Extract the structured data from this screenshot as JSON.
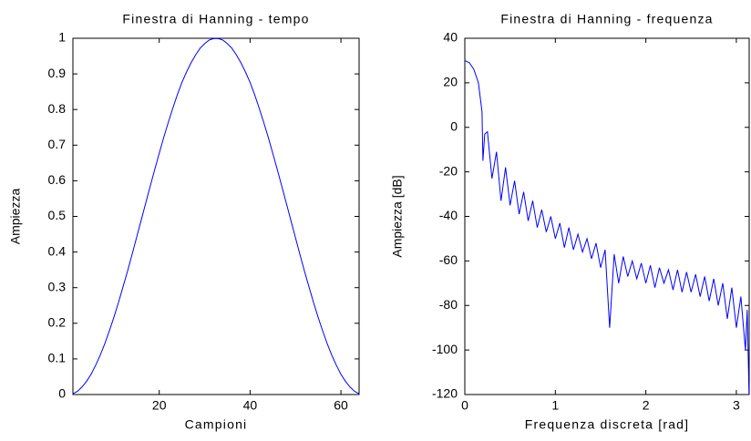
{
  "chart_data": [
    {
      "type": "line",
      "title": "Finestra di Hanning - tempo",
      "xlabel": "Campioni",
      "ylabel": "Ampiezza",
      "color": "#0000ff",
      "x": [
        1,
        2,
        3,
        4,
        5,
        6,
        7,
        8,
        9,
        10,
        11,
        12,
        13,
        14,
        15,
        16,
        17,
        18,
        19,
        20,
        21,
        22,
        23,
        24,
        25,
        26,
        27,
        28,
        29,
        30,
        31,
        32,
        33,
        34,
        35,
        36,
        37,
        38,
        39,
        40,
        41,
        42,
        43,
        44,
        45,
        46,
        47,
        48,
        49,
        50,
        51,
        52,
        53,
        54,
        55,
        56,
        57,
        58,
        59,
        60,
        61,
        62,
        63,
        64
      ],
      "values": [
        0.002,
        0.009,
        0.021,
        0.037,
        0.057,
        0.082,
        0.11,
        0.142,
        0.178,
        0.216,
        0.257,
        0.301,
        0.345,
        0.392,
        0.44,
        0.488,
        0.536,
        0.584,
        0.631,
        0.677,
        0.722,
        0.764,
        0.804,
        0.842,
        0.876,
        0.905,
        0.931,
        0.953,
        0.972,
        0.985,
        0.995,
        0.999,
        0.999,
        0.995,
        0.985,
        0.972,
        0.953,
        0.931,
        0.905,
        0.876,
        0.842,
        0.804,
        0.764,
        0.722,
        0.677,
        0.631,
        0.584,
        0.536,
        0.488,
        0.44,
        0.392,
        0.345,
        0.301,
        0.257,
        0.216,
        0.178,
        0.142,
        0.11,
        0.082,
        0.057,
        0.037,
        0.021,
        0.009,
        0.002
      ],
      "xlim": [
        1,
        64
      ],
      "xticks": [
        20,
        40,
        60
      ],
      "ylim": [
        0,
        1
      ],
      "yticks": [
        0,
        0.1,
        0.2,
        0.3,
        0.4,
        0.5,
        0.6,
        0.7,
        0.8,
        0.9,
        1
      ],
      "grid": false
    },
    {
      "type": "line",
      "title": "Finestra di Hanning - frequenza",
      "xlabel": "Frequenza discreta [rad]",
      "ylabel": "Ampiezza [dB]",
      "color": "#0000ff",
      "x": [
        0,
        0.05,
        0.1,
        0.15,
        0.19,
        0.2,
        0.22,
        0.25,
        0.3,
        0.35,
        0.4,
        0.45,
        0.5,
        0.55,
        0.6,
        0.65,
        0.7,
        0.75,
        0.8,
        0.85,
        0.9,
        0.95,
        1.0,
        1.05,
        1.1,
        1.15,
        1.2,
        1.25,
        1.3,
        1.35,
        1.4,
        1.45,
        1.5,
        1.55,
        1.6,
        1.65,
        1.7,
        1.75,
        1.8,
        1.85,
        1.9,
        1.95,
        2.0,
        2.05,
        2.1,
        2.15,
        2.2,
        2.25,
        2.3,
        2.35,
        2.4,
        2.45,
        2.5,
        2.55,
        2.6,
        2.65,
        2.7,
        2.75,
        2.8,
        2.85,
        2.9,
        2.95,
        3.0,
        3.05,
        3.1,
        3.12,
        3.14
      ],
      "values": [
        30,
        29,
        26,
        20,
        7,
        -15,
        -3,
        -2,
        -23,
        -11,
        -33,
        -18,
        -35,
        -24,
        -39,
        -29,
        -42,
        -33,
        -45,
        -37,
        -47,
        -40,
        -50,
        -43,
        -54,
        -45,
        -55,
        -48,
        -56,
        -50,
        -59,
        -52,
        -63,
        -55,
        -90,
        -57,
        -70,
        -58,
        -67,
        -60,
        -68,
        -61,
        -70,
        -62,
        -72,
        -63,
        -70,
        -64,
        -73,
        -64,
        -74,
        -65,
        -74,
        -66,
        -76,
        -67,
        -78,
        -68,
        -80,
        -70,
        -86,
        -72,
        -90,
        -76,
        -100,
        -82,
        -120
      ],
      "xlim": [
        0,
        3.1416
      ],
      "xticks": [
        0,
        1,
        2,
        3
      ],
      "ylim": [
        -120,
        40
      ],
      "yticks": [
        -120,
        -100,
        -80,
        -60,
        -40,
        -20,
        0,
        20,
        40
      ],
      "grid": false
    }
  ]
}
